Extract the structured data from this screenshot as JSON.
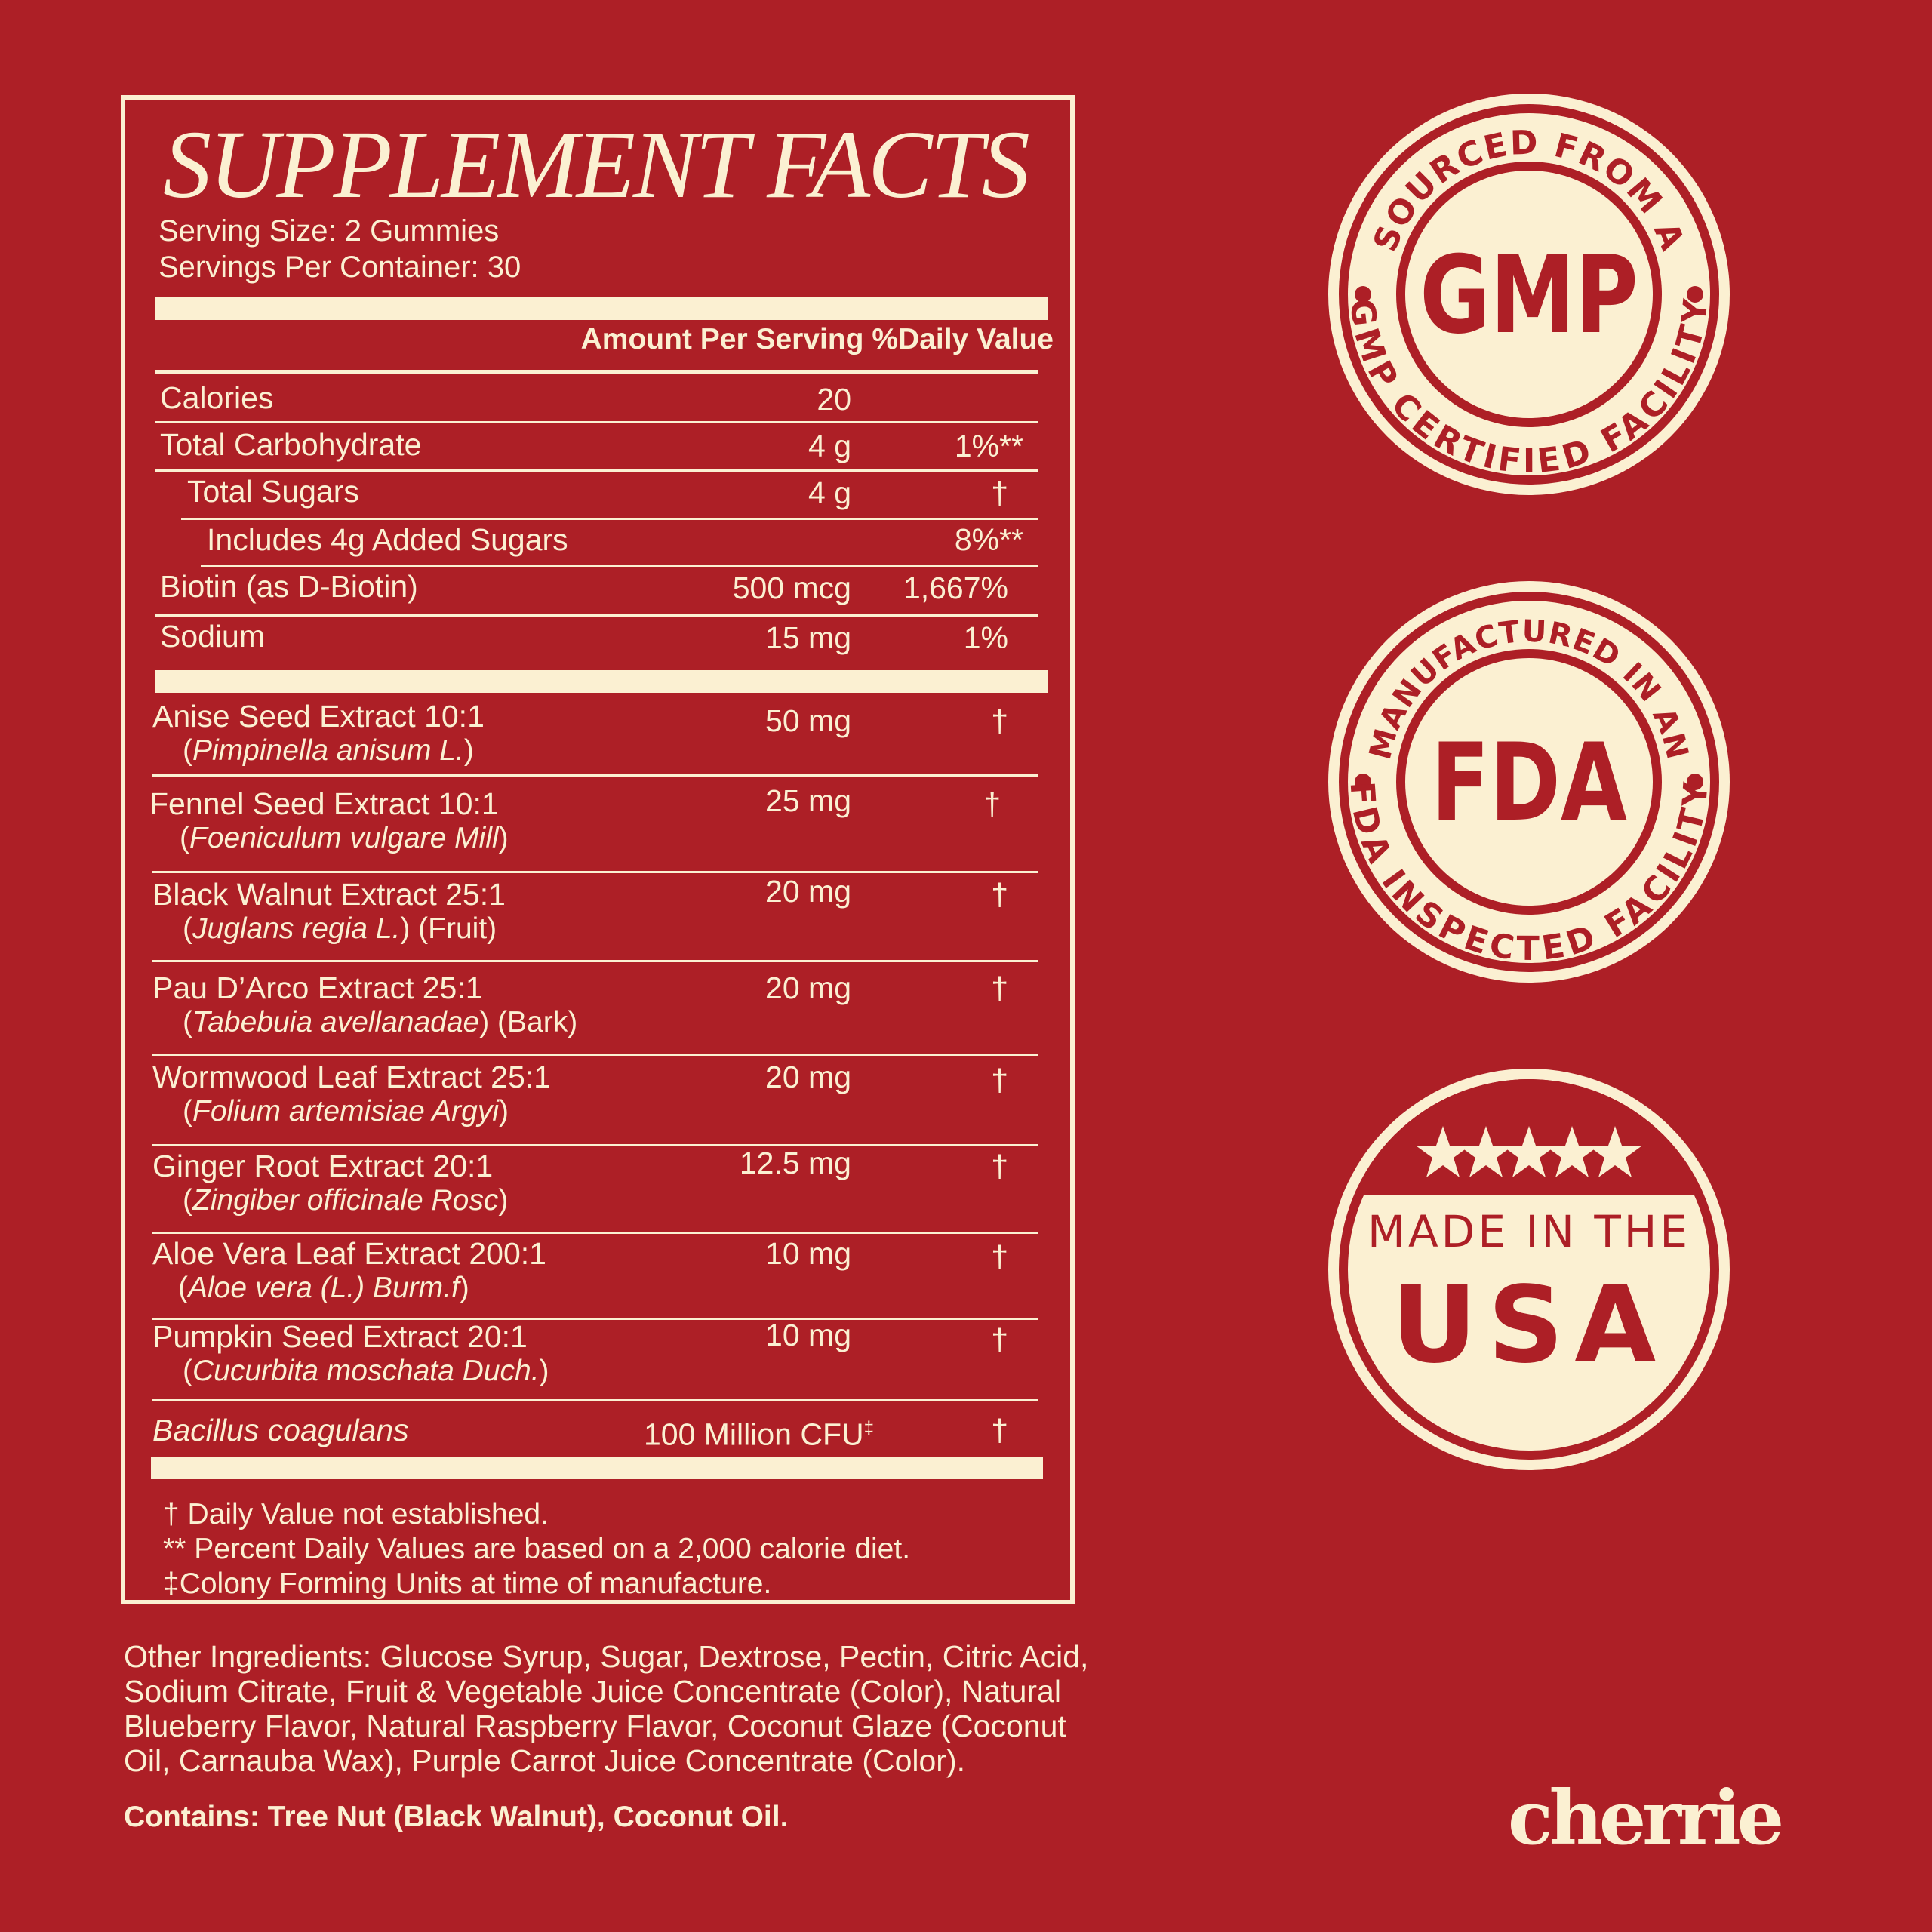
{
  "facts": {
    "title": "SUPPLEMENT FACTS",
    "serving_size": "Serving Size: 2 Gummies",
    "servings_per_container": "Servings Per Container: 30",
    "header_amount": "Amount Per Serving",
    "header_dv": "%Daily Value",
    "nutrients": [
      {
        "name": "Calories",
        "amount": "20",
        "dv": ""
      },
      {
        "name": "Total Carbohydrate",
        "amount": "4 g",
        "dv": "1%**"
      },
      {
        "name": "Total Sugars",
        "amount": "4 g",
        "dv": "†"
      },
      {
        "name": "Includes 4g Added Sugars",
        "amount": "",
        "dv": "8%**"
      },
      {
        "name": "Biotin (as D-Biotin)",
        "amount": "500 mcg",
        "dv": "1,667%"
      },
      {
        "name": "Sodium",
        "amount": "15 mg",
        "dv": "1%"
      }
    ],
    "extracts": [
      {
        "name": "Anise Seed Extract 10:1",
        "sci_open": "(",
        "sci": "Pimpinella anisum L.",
        "sci_close": ")",
        "amount": "50 mg",
        "dv": "†"
      },
      {
        "name": "Fennel Seed Extract 10:1",
        "sci_open": "(",
        "sci": "Foeniculum vulgare Mill",
        "sci_close": ")",
        "amount": "25 mg",
        "dv": "†"
      },
      {
        "name": "Black Walnut Extract 25:1",
        "sci_open": "(",
        "sci": "Juglans regia L.",
        "sci_close": ") (Fruit)",
        "amount": "20 mg",
        "dv": "†"
      },
      {
        "name": "Pau D’Arco Extract 25:1",
        "sci_open": "(",
        "sci": "Tabebuia avellanadae",
        "sci_close": ") (Bark)",
        "amount": "20 mg",
        "dv": "†"
      },
      {
        "name": "Wormwood Leaf Extract 25:1",
        "sci_open": "(",
        "sci": "Folium artemisiae Argyi",
        "sci_close": ")",
        "amount": "20 mg",
        "dv": "†"
      },
      {
        "name": "Ginger Root Extract 20:1",
        "sci_open": "(",
        "sci": "Zingiber officinale Rosc",
        "sci_close": ")",
        "amount": "12.5 mg",
        "dv": "†"
      },
      {
        "name": "Aloe Vera Leaf Extract 200:1",
        "sci_open": "(",
        "sci": "Aloe vera (L.) Burm.f",
        "sci_close": ")",
        "amount": "10 mg",
        "dv": "†"
      },
      {
        "name": "Pumpkin Seed Extract 20:1",
        "sci_open": "(",
        "sci": "Cucurbita moschata Duch.",
        "sci_close": ")",
        "amount": "10 mg",
        "dv": "†"
      }
    ],
    "probiotic": {
      "name": "Bacillus coagulans",
      "amount": "100 Million CFU",
      "mark": "‡",
      "dv": "†"
    },
    "footnotes": [
      "† Daily Value not established.",
      "** Percent Daily Values are based on a 2,000 calorie diet.",
      "‡Colony Forming Units at time of manufacture."
    ]
  },
  "other_ingredients": "Other Ingredients: Glucose Syrup, Sugar, Dextrose, Pectin, Citric Acid, Sodium Citrate, Fruit & Vegetable Juice Concentrate (Color), Natural Blueberry Flavor, Natural Raspberry Flavor, Coconut Glaze (Coconut Oil, Carnauba Wax), Purple Carrot Juice Concentrate (Color).",
  "contains": "Contains: Tree Nut (Black Walnut), Coconut Oil.",
  "badges": {
    "gmp": {
      "top_text": "SOURCED FROM A",
      "center": "GMP",
      "bottom_text": "GMP CERTIFIED FACILITY"
    },
    "fda": {
      "top_text": "MANUFACTURED IN AN",
      "center": "FDA",
      "bottom_text": "FDA INSPECTED FACILITY"
    },
    "usa": {
      "line1": "MADE IN THE",
      "line2": "USA"
    }
  },
  "brand": "cherrie",
  "colors": {
    "background": "#ad1f26",
    "cream": "#fbf0d2"
  }
}
